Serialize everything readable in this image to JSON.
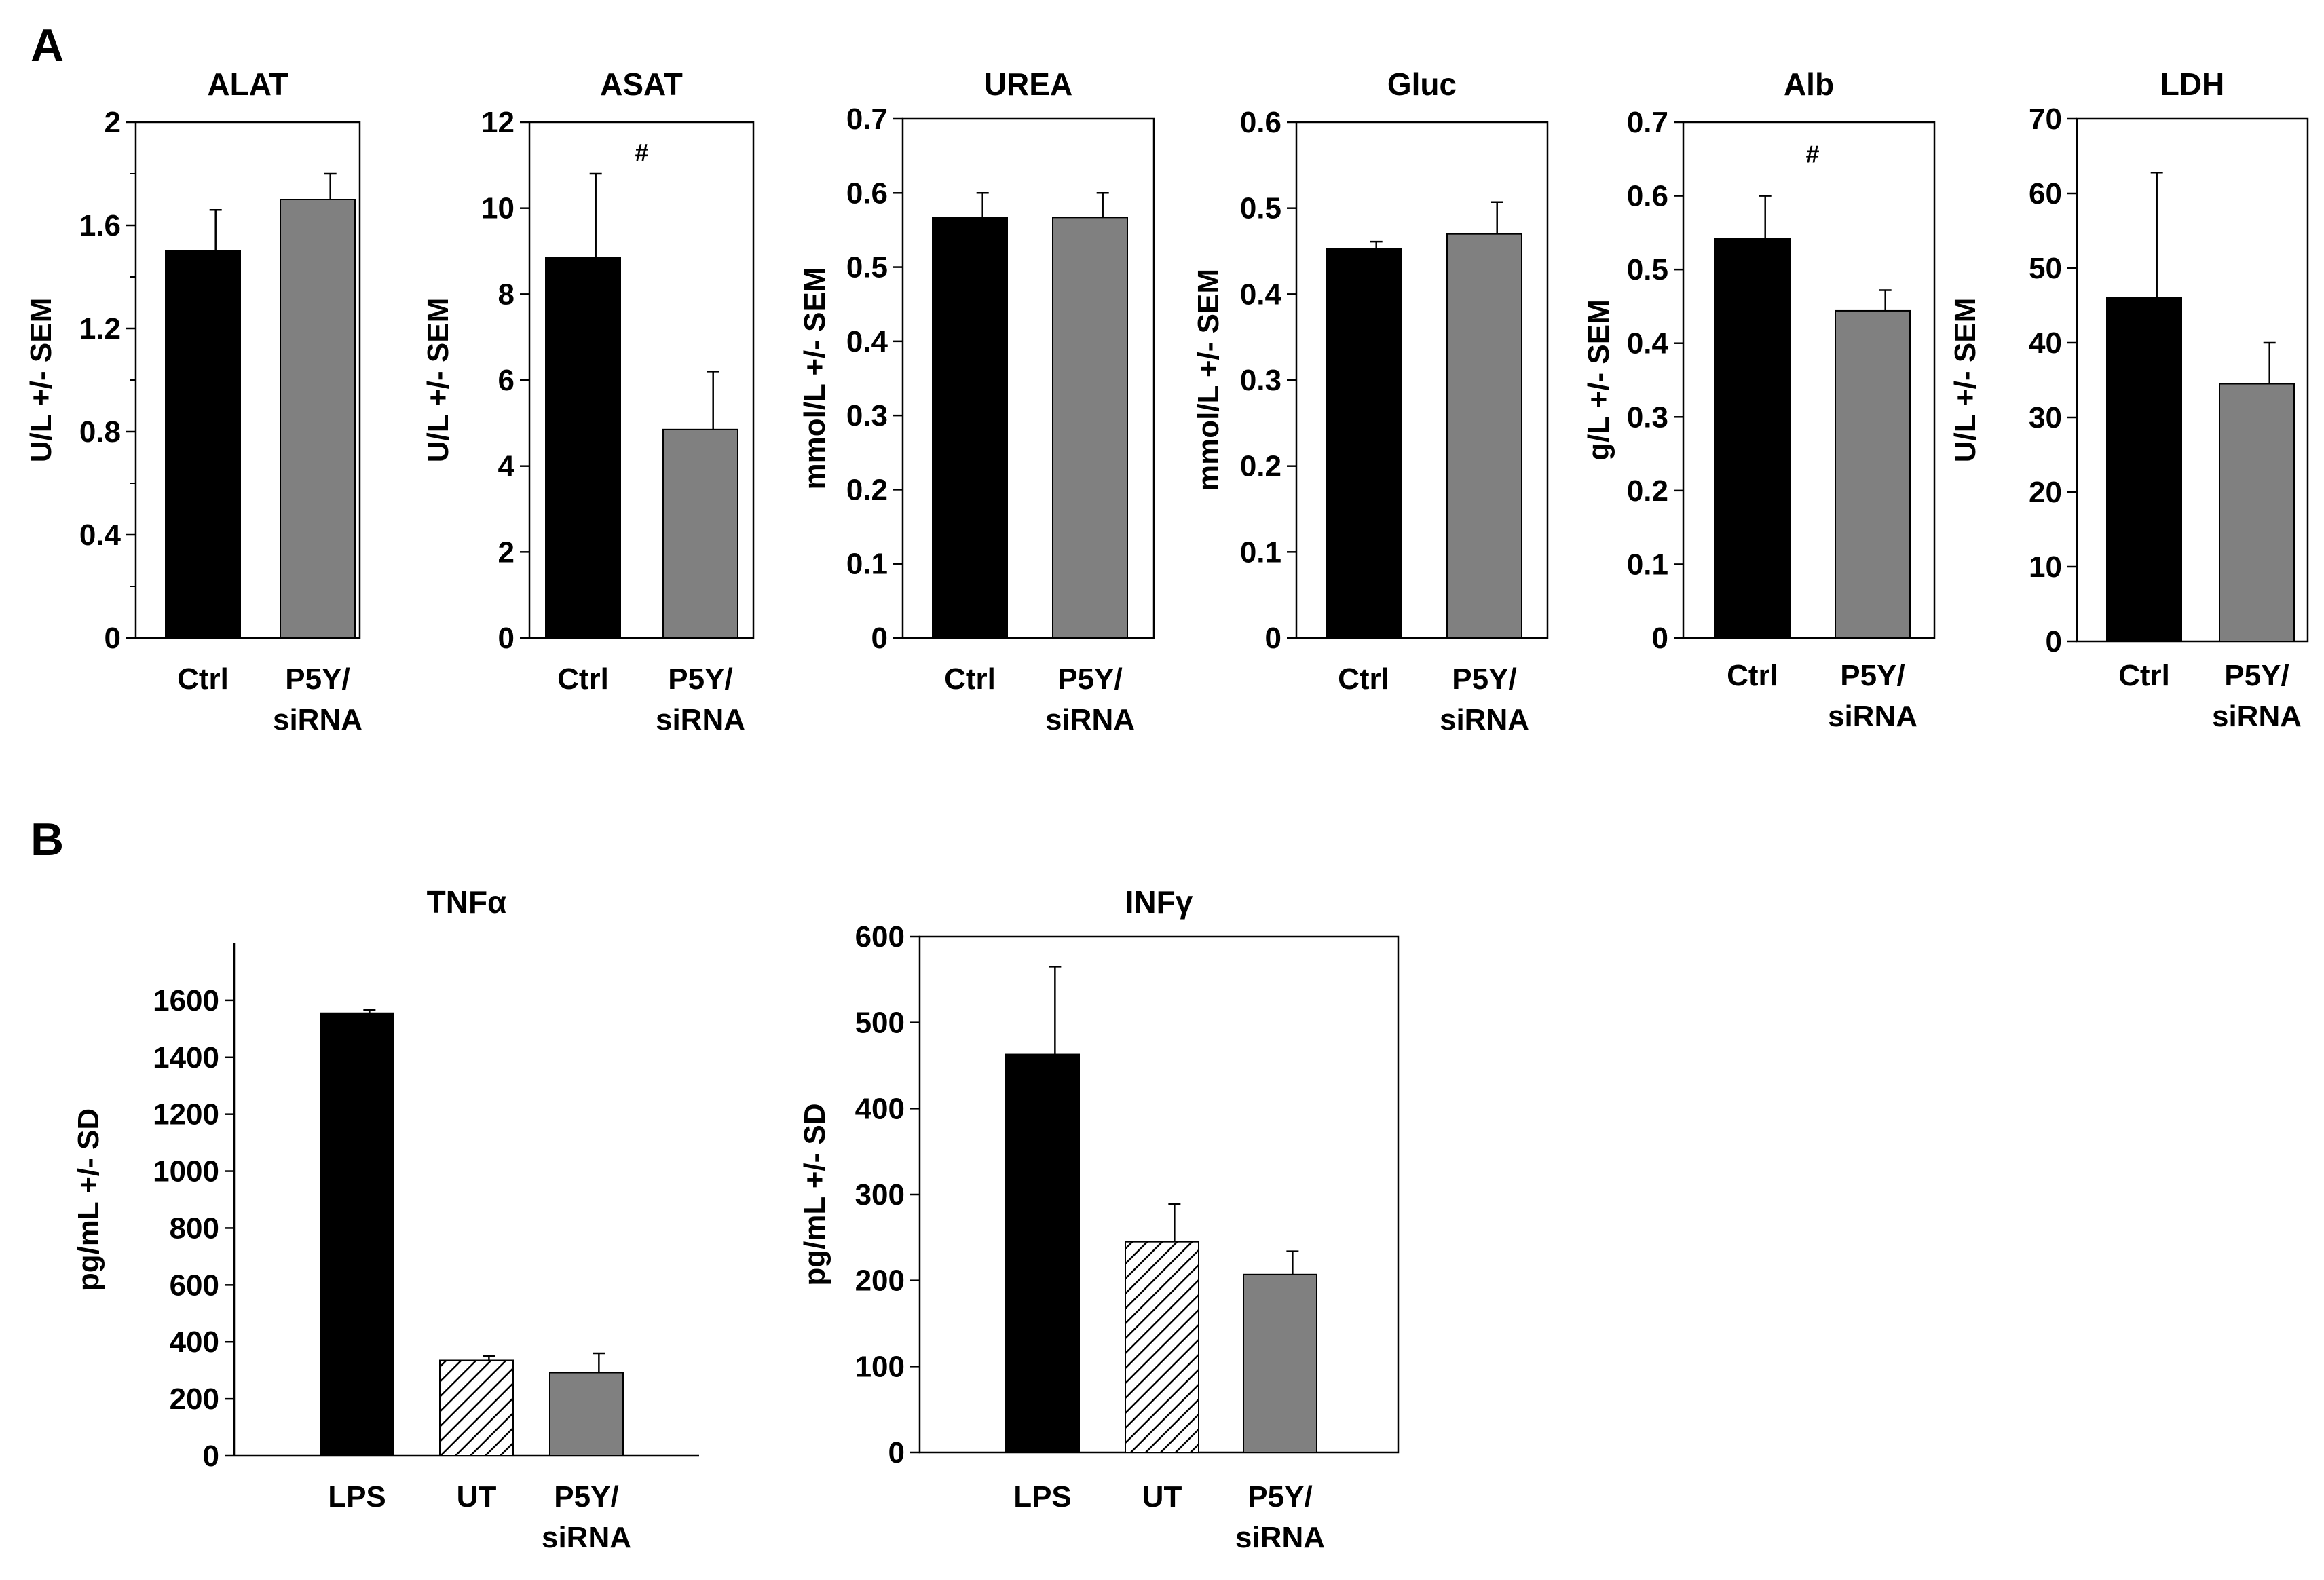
{
  "panels": [
    {
      "letter": "A"
    },
    {
      "letter": "B"
    }
  ],
  "colors": {
    "ctrl": "#000000",
    "treated": "#808080",
    "ut": "#ffffff",
    "axis": "#000000"
  },
  "chart_data": [
    {
      "type": "bar",
      "panel": "A",
      "title": "ALAT",
      "ylabel": "U/L +/- SEM",
      "categories": [
        [
          "Ctrl"
        ],
        [
          "P5Y/",
          "siRNA"
        ]
      ],
      "values": [
        1.5,
        1.7
      ],
      "errors": [
        0.16,
        0.1
      ],
      "fills": [
        "black",
        "gray"
      ],
      "ylim": [
        0,
        2
      ],
      "yticks": [
        "0",
        "0.4",
        "0.8",
        "1.2",
        "1.6",
        "2"
      ],
      "minor_ticks": true,
      "box": true,
      "annotations": []
    },
    {
      "type": "bar",
      "panel": "A",
      "title": "ASAT",
      "ylabel": "U/L +/- SEM",
      "categories": [
        [
          "Ctrl"
        ],
        [
          "P5Y/",
          "siRNA"
        ]
      ],
      "values": [
        8.85,
        4.85
      ],
      "errors": [
        1.95,
        1.35
      ],
      "fills": [
        "black",
        "gray"
      ],
      "ylim": [
        0,
        12
      ],
      "yticks": [
        "0",
        "2",
        "4",
        "6",
        "8",
        "10",
        "12"
      ],
      "minor_ticks": false,
      "box": true,
      "annotations": [
        {
          "text": "#",
          "x": 0.5,
          "y": 11.1
        }
      ]
    },
    {
      "type": "bar",
      "panel": "A",
      "title": "UREA",
      "ylabel": "mmol/L +/- SEM",
      "categories": [
        [
          "Ctrl"
        ],
        [
          "P5Y/",
          "siRNA"
        ]
      ],
      "values": [
        0.567,
        0.567
      ],
      "errors": [
        0.033,
        0.033
      ],
      "fills": [
        "black",
        "gray"
      ],
      "ylim": [
        0,
        0.7
      ],
      "yticks": [
        "0",
        "0.1",
        "0.2",
        "0.3",
        "0.4",
        "0.5",
        "0.6",
        "0.7"
      ],
      "minor_ticks": false,
      "box": true,
      "annotations": []
    },
    {
      "type": "bar",
      "panel": "A",
      "title": "Gluc",
      "ylabel": "mmol/L +/- SEM",
      "categories": [
        [
          "Ctrl"
        ],
        [
          "P5Y/",
          "siRNA"
        ]
      ],
      "values": [
        0.453,
        0.47
      ],
      "errors": [
        0.008,
        0.037
      ],
      "fills": [
        "black",
        "gray"
      ],
      "ylim": [
        0,
        0.6
      ],
      "yticks": [
        "0",
        "0.1",
        "0.2",
        "0.3",
        "0.4",
        "0.5",
        "0.6"
      ],
      "minor_ticks": false,
      "box": true,
      "annotations": []
    },
    {
      "type": "bar",
      "panel": "A",
      "title": "Alb",
      "ylabel": "g/L +/- SEM",
      "categories": [
        [
          "Ctrl"
        ],
        [
          "P5Y/",
          "siRNA"
        ]
      ],
      "values": [
        0.542,
        0.444
      ],
      "errors": [
        0.058,
        0.028
      ],
      "fills": [
        "black",
        "gray"
      ],
      "ylim": [
        0,
        0.7
      ],
      "yticks": [
        "0",
        "0.1",
        "0.2",
        "0.3",
        "0.4",
        "0.5",
        "0.6",
        "0.7"
      ],
      "minor_ticks": false,
      "box": true,
      "annotations": [
        {
          "text": "#",
          "x": 0.5,
          "y": 0.645
        }
      ]
    },
    {
      "type": "bar",
      "panel": "A",
      "title": "LDH",
      "ylabel": "U/L +/- SEM",
      "categories": [
        [
          "Ctrl"
        ],
        [
          "P5Y/",
          "siRNA"
        ]
      ],
      "values": [
        46,
        34.5
      ],
      "errors": [
        16.8,
        5.5
      ],
      "fills": [
        "black",
        "gray"
      ],
      "ylim": [
        0,
        70
      ],
      "yticks": [
        "0",
        "10",
        "20",
        "30",
        "40",
        "50",
        "60",
        "70"
      ],
      "minor_ticks": false,
      "box": true,
      "annotations": []
    },
    {
      "type": "bar",
      "panel": "B",
      "title": "TNFα",
      "ylabel": "pg/mL +/- SD",
      "categories": [
        [
          "LPS"
        ],
        [
          "UT"
        ],
        [
          "P5Y/",
          "siRNA"
        ]
      ],
      "values": [
        1555,
        335,
        292
      ],
      "errors": [
        12,
        15,
        68
      ],
      "fills": [
        "black",
        "hatch",
        "gray"
      ],
      "ylim": [
        0,
        1800
      ],
      "yticks": [
        "0",
        "200",
        "400",
        "600",
        "800",
        "1000",
        "1200",
        "1400",
        "1600"
      ],
      "minor_ticks": false,
      "box": false,
      "annotations": []
    },
    {
      "type": "bar",
      "panel": "B",
      "title": "INFγ",
      "ylabel": "pg/mL +/- SD",
      "categories": [
        [
          "LPS"
        ],
        [
          "UT"
        ],
        [
          "P5Y/",
          "siRNA"
        ]
      ],
      "values": [
        463,
        245,
        207
      ],
      "errors": [
        102,
        44,
        27
      ],
      "fills": [
        "black",
        "hatch",
        "gray"
      ],
      "ylim": [
        0,
        600
      ],
      "yticks": [
        "0",
        "100",
        "200",
        "300",
        "400",
        "500",
        "600"
      ],
      "minor_ticks": false,
      "box": true,
      "annotations": []
    }
  ]
}
